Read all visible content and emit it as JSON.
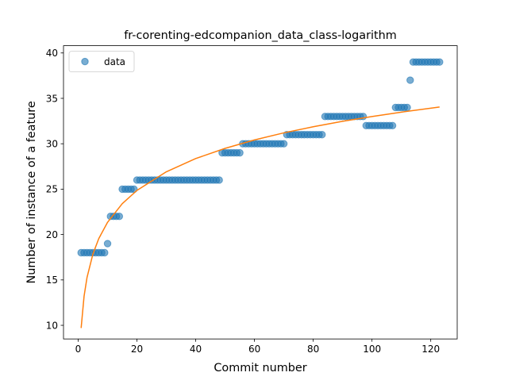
{
  "chart_data": {
    "type": "scatter",
    "title": "fr-corenting-edcompanion_data_class-logarithm",
    "xlabel": "Commit number",
    "ylabel": "Number of instance of a feature",
    "xlim": [
      -5,
      129
    ],
    "ylim": [
      8.5,
      40.8
    ],
    "xticks": [
      "0",
      "20",
      "40",
      "60",
      "80",
      "100",
      "120"
    ],
    "yticks": [
      "10",
      "15",
      "20",
      "25",
      "30",
      "35",
      "40"
    ],
    "legend": {
      "position": "top-left",
      "entries": [
        "data"
      ]
    },
    "grid": false,
    "colors": {
      "scatter": "#1f77b4",
      "fit": "#ff7f0e"
    },
    "series": [
      {
        "name": "data",
        "kind": "scatter",
        "x": [
          1,
          2,
          3,
          4,
          5,
          6,
          7,
          8,
          9,
          10,
          11,
          12,
          13,
          14,
          15,
          16,
          17,
          18,
          19,
          20,
          21,
          22,
          23,
          24,
          25,
          26,
          27,
          28,
          29,
          30,
          31,
          32,
          33,
          34,
          35,
          36,
          37,
          38,
          39,
          40,
          41,
          42,
          43,
          44,
          45,
          46,
          47,
          48,
          49,
          50,
          51,
          52,
          53,
          54,
          55,
          56,
          57,
          58,
          59,
          60,
          61,
          62,
          63,
          64,
          65,
          66,
          67,
          68,
          69,
          70,
          71,
          72,
          73,
          74,
          75,
          76,
          77,
          78,
          79,
          80,
          81,
          82,
          83,
          84,
          85,
          86,
          87,
          88,
          89,
          90,
          91,
          92,
          93,
          94,
          95,
          96,
          97,
          98,
          99,
          100,
          101,
          102,
          103,
          104,
          105,
          106,
          107,
          108,
          109,
          110,
          111,
          112,
          113,
          114,
          115,
          116,
          117,
          118,
          119,
          120,
          121,
          122,
          123
        ],
        "y": [
          18,
          18,
          18,
          18,
          18,
          18,
          18,
          18,
          18,
          19,
          22,
          22,
          22,
          22,
          25,
          25,
          25,
          25,
          25,
          26,
          26,
          26,
          26,
          26,
          26,
          26,
          26,
          26,
          26,
          26,
          26,
          26,
          26,
          26,
          26,
          26,
          26,
          26,
          26,
          26,
          26,
          26,
          26,
          26,
          26,
          26,
          26,
          26,
          29,
          29,
          29,
          29,
          29,
          29,
          29,
          30,
          30,
          30,
          30,
          30,
          30,
          30,
          30,
          30,
          30,
          30,
          30,
          30,
          30,
          30,
          31,
          31,
          31,
          31,
          31,
          31,
          31,
          31,
          31,
          31,
          31,
          31,
          31,
          33,
          33,
          33,
          33,
          33,
          33,
          33,
          33,
          33,
          33,
          33,
          33,
          33,
          33,
          32,
          32,
          32,
          32,
          32,
          32,
          32,
          32,
          32,
          32,
          34,
          34,
          34,
          34,
          34,
          37,
          39,
          39,
          39,
          39,
          39,
          39,
          39,
          39,
          39,
          39
        ]
      },
      {
        "kind": "line",
        "model": "y = 9.7 + 5.06 * ln(x)",
        "x": [
          1,
          2,
          3,
          5,
          7,
          10,
          15,
          20,
          30,
          40,
          50,
          60,
          70,
          80,
          90,
          100,
          110,
          123
        ],
        "y": [
          9.7,
          13.2,
          15.26,
          17.84,
          19.55,
          21.35,
          23.4,
          24.86,
          26.91,
          28.37,
          29.49,
          30.42,
          31.2,
          31.87,
          32.47,
          33.0,
          33.48,
          34.05
        ]
      }
    ]
  }
}
